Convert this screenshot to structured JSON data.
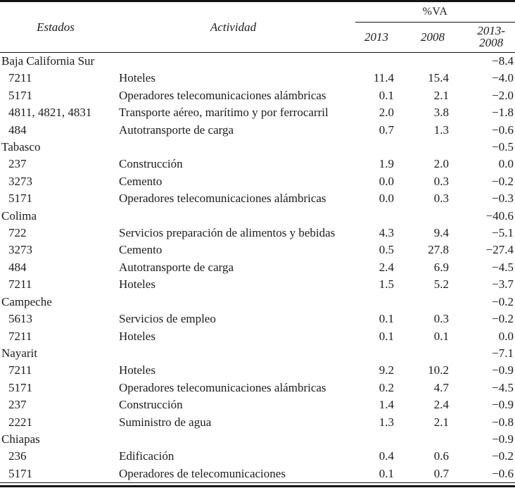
{
  "colors": {
    "background": "#ffffff",
    "text": "#1b1b1b",
    "rule": "#141414"
  },
  "table": {
    "headers": {
      "estados": "Estados",
      "actividad": "Actividad",
      "va_group": "%VA",
      "col_2013": "2013",
      "col_2008": "2008",
      "col_diff_line1": "2013-",
      "col_diff_line2": "2008"
    },
    "groups": [
      {
        "state": "Baja California Sur",
        "diff": "−8.4",
        "rows": [
          {
            "code": "7211",
            "activity": "Hoteles",
            "v2013": "11.4",
            "v2008": "15.4",
            "diff": "−4.0"
          },
          {
            "code": "5171",
            "activity": "Operadores telecomunicaciones alámbricas",
            "v2013": "0.1",
            "v2008": "2.1",
            "diff": "−2.0"
          },
          {
            "code": "4811, 4821, 4831",
            "activity": "Transporte aéreo, marítimo y por ferrocarril",
            "v2013": "2.0",
            "v2008": "3.8",
            "diff": "−1.8"
          },
          {
            "code": "484",
            "activity": "Autotransporte de carga",
            "v2013": "0.7",
            "v2008": "1.3",
            "diff": "−0.6"
          }
        ]
      },
      {
        "state": "Tabasco",
        "diff": "−0.5",
        "rows": [
          {
            "code": "237",
            "activity": "Construcción",
            "v2013": "1.9",
            "v2008": "2.0",
            "diff": "0.0"
          },
          {
            "code": "3273",
            "activity": "Cemento",
            "v2013": "0.0",
            "v2008": "0.3",
            "diff": "−0.2"
          },
          {
            "code": "5171",
            "activity": "Operadores telecomunicaciones alámbricas",
            "v2013": "0.0",
            "v2008": "0.3",
            "diff": "−0.3"
          }
        ]
      },
      {
        "state": "Colima",
        "diff": "−40.6",
        "rows": [
          {
            "code": "722",
            "activity": "Servicios preparación de alimentos y bebidas",
            "v2013": "4.3",
            "v2008": "9.4",
            "diff": "−5.1"
          },
          {
            "code": "3273",
            "activity": "Cemento",
            "v2013": "0.5",
            "v2008": "27.8",
            "diff": "−27.4"
          },
          {
            "code": "484",
            "activity": "Autotransporte de carga",
            "v2013": "2.4",
            "v2008": "6.9",
            "diff": "−4.5"
          },
          {
            "code": "7211",
            "activity": "Hoteles",
            "v2013": "1.5",
            "v2008": "5.2",
            "diff": "−3.7"
          }
        ]
      },
      {
        "state": "Campeche",
        "diff": "−0.2",
        "rows": [
          {
            "code": "5613",
            "activity": "Servicios de empleo",
            "v2013": "0.1",
            "v2008": "0.3",
            "diff": "−0.2"
          },
          {
            "code": "7211",
            "activity": "Hoteles",
            "v2013": "0.1",
            "v2008": "0.1",
            "diff": "0.0"
          }
        ]
      },
      {
        "state": "Nayarit",
        "diff": "−7.1",
        "rows": [
          {
            "code": "7211",
            "activity": "Hoteles",
            "v2013": "9.2",
            "v2008": "10.2",
            "diff": "−0.9"
          },
          {
            "code": "5171",
            "activity": "Operadores telecomunicaciones alámbricas",
            "v2013": "0.2",
            "v2008": "4.7",
            "diff": "−4.5"
          },
          {
            "code": "237",
            "activity": "Construcción",
            "v2013": "1.4",
            "v2008": "2.4",
            "diff": "−0.9"
          },
          {
            "code": "2221",
            "activity": "Suministro de agua",
            "v2013": "1.3",
            "v2008": "2.1",
            "diff": "−0.8"
          }
        ]
      },
      {
        "state": "Chiapas",
        "diff": "−0.9",
        "rows": [
          {
            "code": "236",
            "activity": "Edificación",
            "v2013": "0.4",
            "v2008": "0.6",
            "diff": "−0.2"
          },
          {
            "code": "5171",
            "activity": "Operadores de telecomunicaciones",
            "v2013": "0.1",
            "v2008": "0.7",
            "diff": "−0.6"
          }
        ]
      }
    ]
  }
}
